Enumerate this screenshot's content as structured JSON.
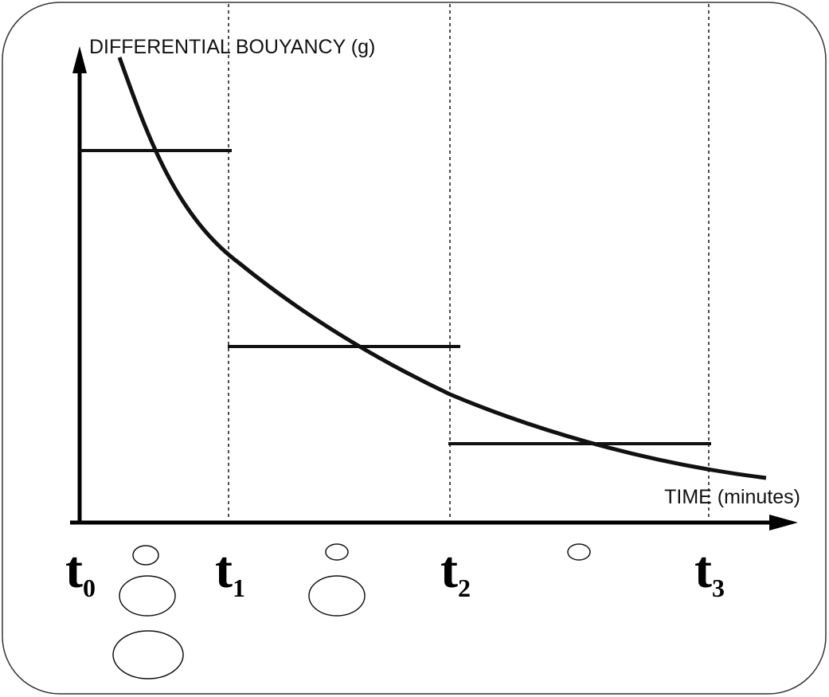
{
  "y_axis_label": "DIFFERENTIAL BOUYANCY (g)",
  "x_axis_label": "TIME (minutes)",
  "time_marks": [
    {
      "letter": "t",
      "subscript": "0"
    },
    {
      "letter": "t",
      "subscript": "1"
    },
    {
      "letter": "t",
      "subscript": "2"
    },
    {
      "letter": "t",
      "subscript": "3"
    }
  ]
}
